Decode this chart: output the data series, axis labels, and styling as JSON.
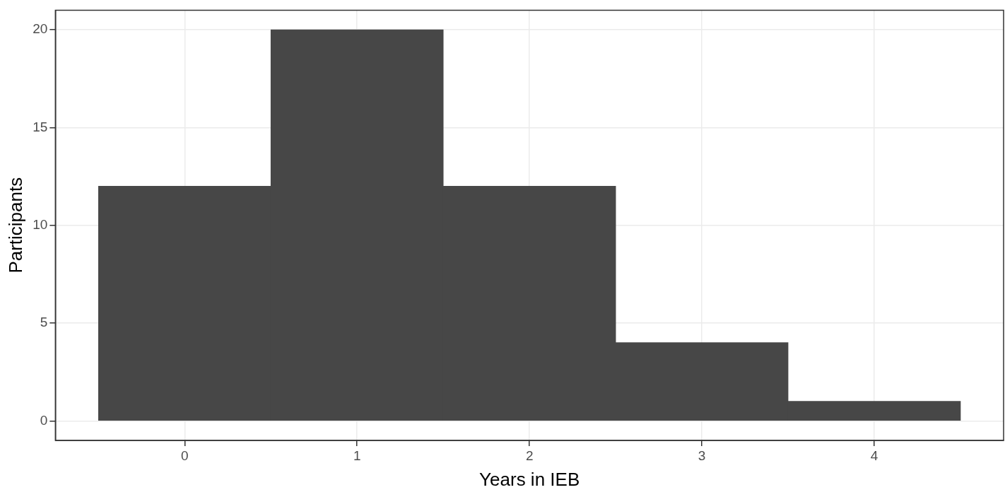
{
  "chart_data": {
    "type": "histogram",
    "xlabel": "Years in IEB",
    "ylabel": "Participants",
    "bins": [
      -0.5,
      0.5,
      1.5,
      2.5,
      3.5,
      4.5
    ],
    "values": [
      12,
      20,
      12,
      4,
      1
    ],
    "color": "#474747",
    "xlim": [
      -0.75,
      4.75
    ],
    "xticks": [
      0,
      1,
      2,
      3,
      4
    ],
    "ylim": [
      -1,
      21
    ],
    "yticks": [
      0,
      5,
      10,
      15,
      20
    ],
    "grid": true
  }
}
